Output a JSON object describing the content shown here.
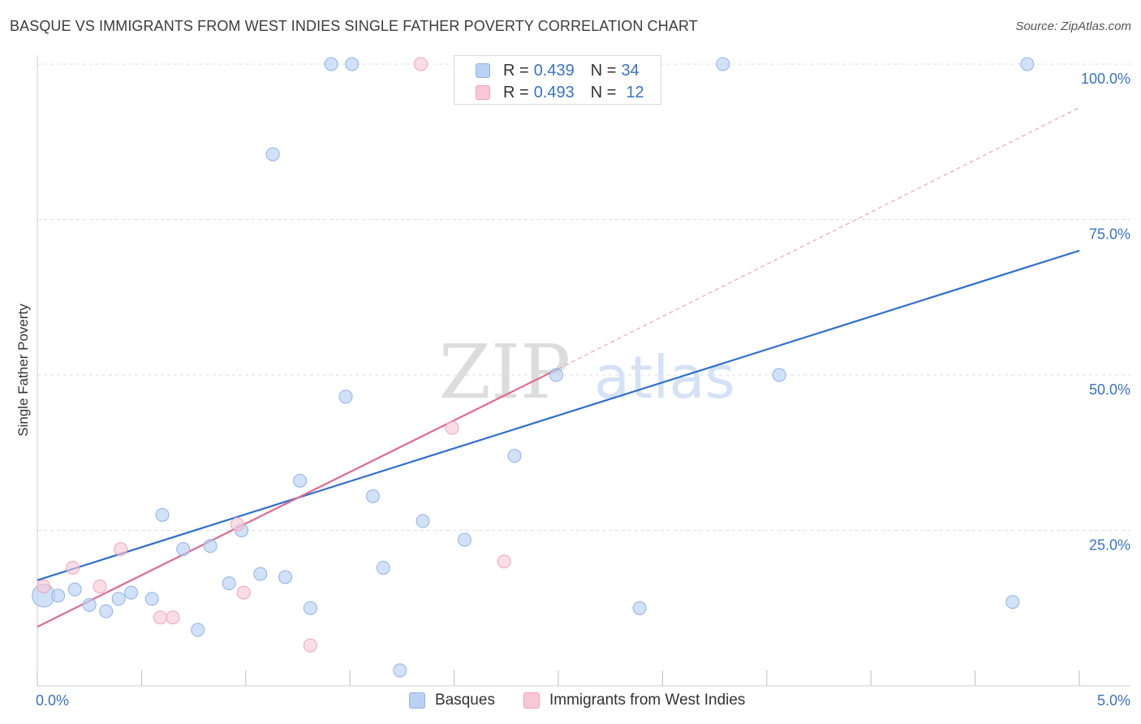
{
  "title": "BASQUE VS IMMIGRANTS FROM WEST INDIES SINGLE FATHER POVERTY CORRELATION CHART",
  "source": "Source: ZipAtlas.com",
  "watermark": {
    "zip": "ZIP",
    "atlas": "atlas"
  },
  "legend": {
    "rows": [
      {
        "r_label": "R =",
        "r_value": "0.439",
        "n_label": "N =",
        "n_value": "34"
      },
      {
        "r_label": "R =",
        "r_value": "0.493",
        "n_label": "N =",
        "n_value": "12"
      }
    ]
  },
  "bottom_legend": {
    "basques": "Basques",
    "west_indies": "Immigrants from West Indies"
  },
  "colors": {
    "blue_fill": "#b9d1f3",
    "blue_stroke": "#8fb3e6",
    "blue_line": "#2f6fd0",
    "pink_fill": "#f8c7d6",
    "pink_stroke": "#eea3ba",
    "pink_line": "#e06a93",
    "tick_label": "#3a72c4",
    "grid": "#dddddd"
  },
  "chart_data": {
    "type": "scatter",
    "title": "BASQUE VS IMMIGRANTS FROM WEST INDIES SINGLE FATHER POVERTY CORRELATION CHART",
    "xlabel": "",
    "ylabel": "Single Father Poverty",
    "xlim": [
      0,
      5
    ],
    "ylim": [
      0,
      100
    ],
    "x_tick_labels": [
      "0.0%",
      "5.0%"
    ],
    "y_tick_labels": [
      "100.0%",
      "75.0%",
      "50.0%",
      "25.0%"
    ],
    "y_ticks": [
      100,
      75,
      50,
      25
    ],
    "grid": true,
    "series": [
      {
        "name": "Basques",
        "points": [
          [
            0.03,
            14.5
          ],
          [
            0.1,
            14.5
          ],
          [
            0.18,
            15.5
          ],
          [
            0.25,
            13.0
          ],
          [
            0.33,
            12.0
          ],
          [
            0.39,
            14.0
          ],
          [
            0.45,
            15.0
          ],
          [
            0.55,
            14.0
          ],
          [
            0.6,
            27.5
          ],
          [
            0.7,
            22.0
          ],
          [
            0.77,
            9.0
          ],
          [
            0.83,
            22.5
          ],
          [
            0.92,
            16.5
          ],
          [
            0.98,
            25.0
          ],
          [
            1.07,
            18.0
          ],
          [
            1.13,
            85.5
          ],
          [
            1.19,
            17.5
          ],
          [
            1.26,
            33.0
          ],
          [
            1.31,
            12.5
          ],
          [
            1.41,
            100
          ],
          [
            1.48,
            46.5
          ],
          [
            1.51,
            100
          ],
          [
            1.61,
            30.5
          ],
          [
            1.66,
            19.0
          ],
          [
            1.74,
            2.5
          ],
          [
            1.85,
            26.5
          ],
          [
            2.05,
            23.5
          ],
          [
            2.29,
            37.0
          ],
          [
            2.49,
            50.0
          ],
          [
            2.89,
            12.5
          ],
          [
            3.29,
            100
          ],
          [
            3.56,
            50.0
          ],
          [
            4.68,
            13.5
          ],
          [
            4.75,
            100
          ]
        ],
        "trend": {
          "x": [
            0.0,
            5.0
          ],
          "y": [
            17.0,
            70.0
          ]
        }
      },
      {
        "name": "Immigrants from West Indies",
        "points": [
          [
            0.03,
            16.0
          ],
          [
            0.17,
            19.0
          ],
          [
            0.3,
            16.0
          ],
          [
            0.4,
            22.0
          ],
          [
            0.59,
            11.0
          ],
          [
            0.65,
            11.0
          ],
          [
            0.96,
            26.0
          ],
          [
            0.99,
            15.0
          ],
          [
            1.31,
            6.5
          ],
          [
            1.84,
            100
          ],
          [
            1.99,
            41.5
          ],
          [
            2.24,
            20.0
          ]
        ],
        "trend": {
          "x": [
            0.0,
            2.5
          ],
          "y": [
            9.5,
            51.0
          ]
        },
        "trend_extension": {
          "x": [
            2.5,
            5.0
          ],
          "y": [
            51.0,
            93.0
          ]
        }
      }
    ]
  }
}
